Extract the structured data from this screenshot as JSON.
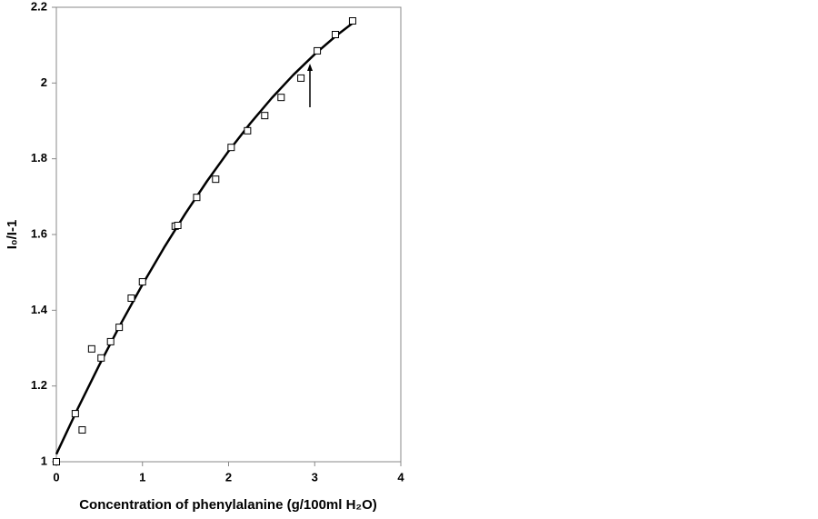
{
  "chart_data": {
    "type": "scatter",
    "x_label": "Concentration of phenylalanine (g/100ml H₂O)",
    "y_label": "I₀/I-1",
    "xlim": [
      0,
      4
    ],
    "xticks": [
      0,
      1,
      2,
      3,
      4
    ],
    "ylim": [
      1,
      2.2
    ],
    "yticks": [
      1,
      1.2,
      1.4,
      1.6,
      1.8,
      2,
      2.2
    ],
    "points": {
      "color": "#000000",
      "x": [
        0,
        0.22,
        0.3,
        0.41,
        0.52,
        0.63,
        0.73,
        0.87,
        1.0,
        1.38,
        1.41,
        1.63,
        1.85,
        2.03,
        2.22,
        2.42,
        2.61,
        2.84,
        3.03,
        3.24,
        3.44
      ],
      "y": [
        1.0,
        1.127,
        1.084,
        1.298,
        1.274,
        1.317,
        1.355,
        1.432,
        1.475,
        1.622,
        1.624,
        1.698,
        1.746,
        1.83,
        1.874,
        1.914,
        1.962,
        2.013,
        2.085,
        2.128,
        2.164
      ]
    },
    "curve": {
      "color": "#000000",
      "x": [
        0,
        0.25,
        0.5,
        0.75,
        1,
        1.25,
        1.5,
        1.75,
        2,
        2.25,
        2.5,
        2.75,
        3,
        3.25,
        3.44
      ],
      "y": [
        1.02,
        1.141,
        1.256,
        1.365,
        1.468,
        1.565,
        1.656,
        1.741,
        1.82,
        1.893,
        1.96,
        2.021,
        2.076,
        2.125,
        2.158
      ]
    }
  }
}
